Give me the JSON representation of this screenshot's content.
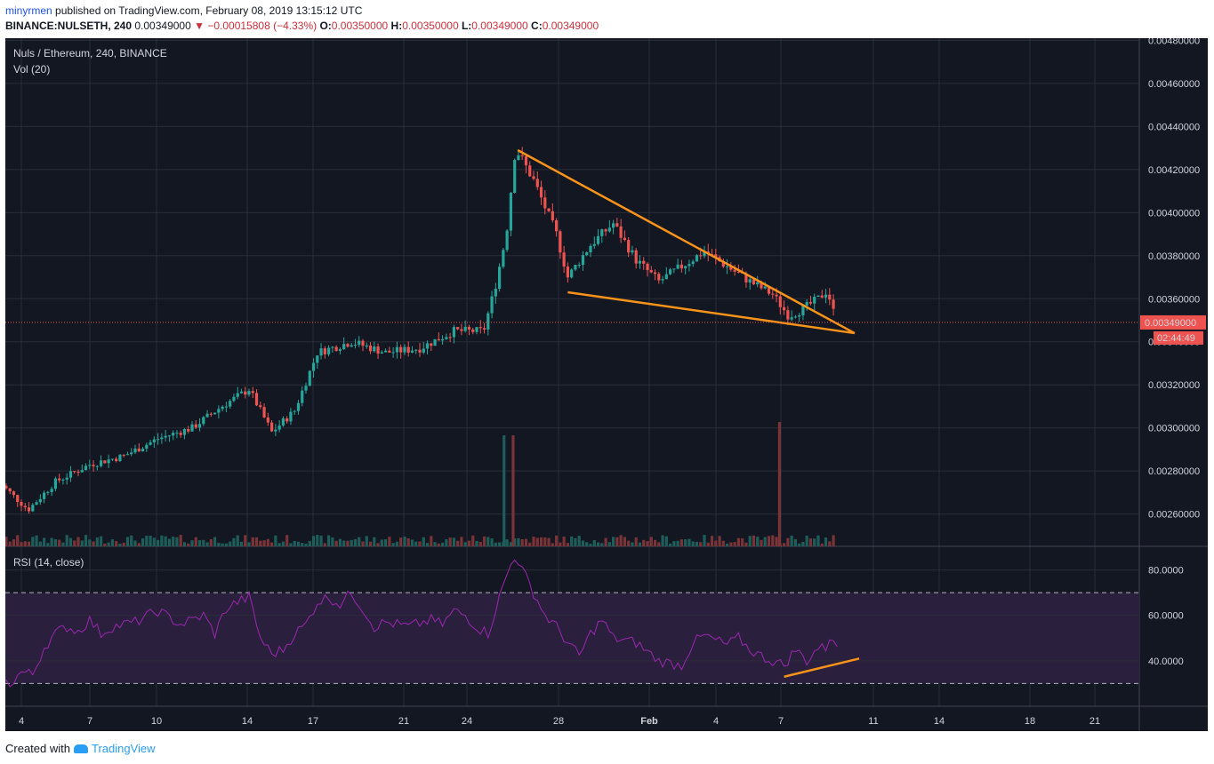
{
  "header": {
    "user": "minyrmen",
    "published": "published on TradingView.com, February 08, 2019 13:15:12 UTC",
    "symbol": "BINANCE:NULSETH, 240",
    "last": "0.00349000",
    "change": "−0.00015808 (−4.33%)",
    "o_label": "O:",
    "o_val": "0.00350000",
    "h_label": "H:",
    "h_val": "0.00350000",
    "l_label": "L:",
    "l_val": "0.00349000",
    "c_label": "C:",
    "c_val": "0.00349000"
  },
  "footer": {
    "created": "Created with",
    "brand": "TradingView"
  },
  "colors": {
    "bg": "#131722",
    "up": "#26a69a",
    "down": "#ef5350",
    "trend": "#f7931a",
    "rsi": "#9c27b0",
    "rsiband": "#2a1f3d"
  },
  "chart_data": [
    {
      "type": "candlestick",
      "title": "Nuls / Ethereum, 240, BINANCE",
      "indicator": "Vol (20)",
      "ylim": [
        0.00245,
        0.00481
      ],
      "y_ticks": [
        "0.00260000",
        "0.00280000",
        "0.00300000",
        "0.00320000",
        "0.00340000",
        "0.00360000",
        "0.00380000",
        "0.00400000",
        "0.00420000",
        "0.00440000",
        "0.00460000",
        "0.00480000"
      ],
      "x_ticks": [
        "4",
        "7",
        "10",
        "14",
        "17",
        "21",
        "24",
        "28",
        "Feb",
        "4",
        "7",
        "11",
        "14",
        "18",
        "21"
      ],
      "current_price": "0.00349000",
      "countdown": "02:44:49",
      "close_path": [
        {
          "day": 3.0,
          "price": 0.00275
        },
        {
          "day": 4.3,
          "price": 0.00262
        },
        {
          "day": 5.5,
          "price": 0.00275
        },
        {
          "day": 7.0,
          "price": 0.00283
        },
        {
          "day": 8.5,
          "price": 0.00287
        },
        {
          "day": 10.0,
          "price": 0.00295
        },
        {
          "day": 11.5,
          "price": 0.003
        },
        {
          "day": 12.8,
          "price": 0.0031
        },
        {
          "day": 14.0,
          "price": 0.00318
        },
        {
          "day": 15.0,
          "price": 0.00298
        },
        {
          "day": 16.0,
          "price": 0.00308
        },
        {
          "day": 17.0,
          "price": 0.00335
        },
        {
          "day": 18.5,
          "price": 0.0034
        },
        {
          "day": 20.0,
          "price": 0.00335
        },
        {
          "day": 21.5,
          "price": 0.00337
        },
        {
          "day": 23.0,
          "price": 0.00345
        },
        {
          "day": 24.3,
          "price": 0.00345
        },
        {
          "day": 24.8,
          "price": 0.00365
        },
        {
          "day": 25.3,
          "price": 0.0039
        },
        {
          "day": 25.7,
          "price": 0.0043
        },
        {
          "day": 26.5,
          "price": 0.00415
        },
        {
          "day": 27.5,
          "price": 0.0039
        },
        {
          "day": 28.0,
          "price": 0.0037
        },
        {
          "day": 29.0,
          "price": 0.00385
        },
        {
          "day": 30.0,
          "price": 0.00395
        },
        {
          "day": 31.0,
          "price": 0.00378
        },
        {
          "day": 32.0,
          "price": 0.00368
        },
        {
          "day": 33.0,
          "price": 0.00375
        },
        {
          "day": 34.0,
          "price": 0.00382
        },
        {
          "day": 35.0,
          "price": 0.00375
        },
        {
          "day": 36.0,
          "price": 0.00368
        },
        {
          "day": 37.0,
          "price": 0.00362
        },
        {
          "day": 37.7,
          "price": 0.00352
        },
        {
          "day": 38.3,
          "price": 0.00355
        },
        {
          "day": 39.0,
          "price": 0.0036
        },
        {
          "day": 39.4,
          "price": 0.00364
        },
        {
          "day": 39.8,
          "price": 0.00349
        }
      ],
      "volume_spikes": [
        {
          "day": 25.2,
          "volume": "high",
          "direction": "up"
        },
        {
          "day": 25.6,
          "volume": "high",
          "direction": "down"
        },
        {
          "day": 37.3,
          "volume": "max",
          "direction": "down"
        }
      ],
      "trendlines": [
        {
          "from": {
            "day": 25.8,
            "price": 0.00429
          },
          "to": {
            "day": 40.6,
            "price": 0.00344
          }
        },
        {
          "from": {
            "day": 28.0,
            "price": 0.00363
          },
          "to": {
            "day": 40.6,
            "price": 0.00344
          }
        }
      ]
    },
    {
      "type": "line",
      "title": "RSI (14, close)",
      "ylim": [
        20,
        90
      ],
      "y_ticks": [
        "40.0000",
        "60.0000",
        "80.0000"
      ],
      "bands": [
        30,
        70
      ],
      "series": [
        {
          "name": "RSI",
          "x": [
            3.0,
            3.5,
            4.0,
            4.5,
            5.0,
            5.5,
            6.0,
            6.5,
            7.0,
            7.5,
            8.0,
            9.0,
            10.0,
            11.0,
            12.0,
            12.5,
            13.0,
            13.5,
            14.0,
            14.5,
            15.0,
            15.5,
            16.0,
            16.5,
            17.0,
            17.5,
            18.0,
            18.5,
            19.0,
            19.5,
            20.0,
            21.0,
            22.0,
            22.5,
            23.0,
            23.5,
            24.0,
            24.5,
            25.0,
            25.4,
            25.7,
            26.0,
            26.5,
            27.0,
            27.5,
            28.0,
            28.5,
            29.0,
            29.5,
            30.0,
            31.0,
            32.0,
            33.0,
            33.5,
            34.0,
            35.0,
            35.5,
            36.0,
            36.5,
            37.0,
            37.5,
            38.0,
            38.5,
            39.0,
            39.3,
            39.6,
            39.9
          ],
          "values": [
            31,
            30,
            35,
            34,
            46,
            52,
            55,
            53,
            58,
            52,
            55,
            57,
            62,
            56,
            60,
            52,
            63,
            66,
            68,
            50,
            43,
            45,
            52,
            56,
            66,
            68,
            65,
            70,
            63,
            55,
            57,
            55,
            58,
            56,
            62,
            60,
            55,
            52,
            68,
            80,
            87,
            80,
            70,
            60,
            55,
            48,
            42,
            52,
            58,
            50,
            48,
            40,
            38,
            48,
            51,
            47,
            50,
            45,
            42,
            40,
            38,
            45,
            40,
            46,
            45,
            53,
            42
          ]
        }
      ],
      "trendline": {
        "from": {
          "day": 37.5,
          "value": 33
        },
        "to": {
          "day": 40.8,
          "value": 41
        }
      }
    }
  ]
}
